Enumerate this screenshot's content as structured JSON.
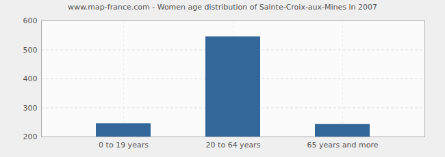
{
  "chart_data": {
    "type": "bar",
    "title": "www.map-france.com - Women age distribution of Sainte-Croix-aux-Mines in 2007",
    "categories": [
      "0 to 19 years",
      "20 to 64 years",
      "65 years and more"
    ],
    "values": [
      246,
      545,
      243
    ],
    "color": "#336699",
    "ylim": [
      200,
      600
    ],
    "yticks": [
      200,
      300,
      400,
      500,
      600
    ],
    "grid": true
  }
}
